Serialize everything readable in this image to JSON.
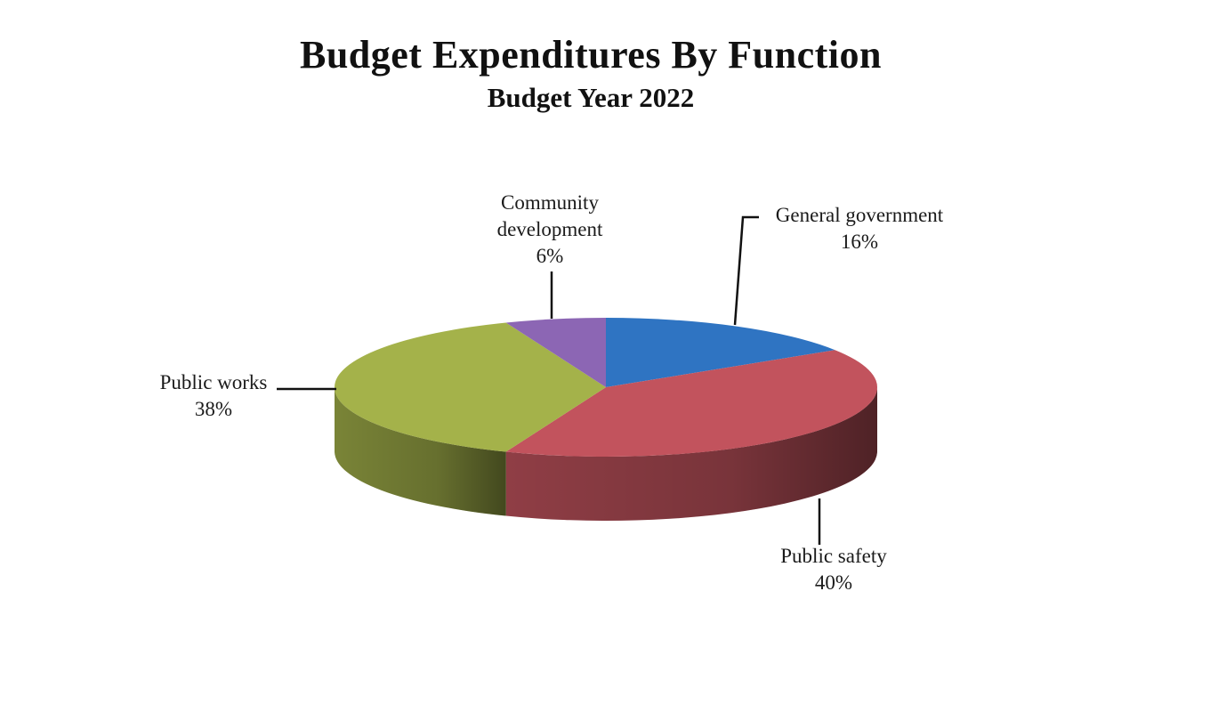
{
  "chart_data": {
    "type": "pie",
    "title": "Budget Expenditures By Function",
    "subtitle": "Budget Year 2022",
    "slices": [
      {
        "label": "General government",
        "value": 16,
        "value_label": "16%",
        "color": "#2f74c2"
      },
      {
        "label": "Public safety",
        "value": 40,
        "value_label": "40%",
        "color": "#c2535d"
      },
      {
        "label": "Public works",
        "value": 38,
        "value_label": "38%",
        "color": "#a4b24a"
      },
      {
        "label": "Community development",
        "label_lines": [
          "Community",
          "development"
        ],
        "value": 6,
        "value_label": "6%",
        "color": "#8c66b4"
      }
    ],
    "style": "3d-pie",
    "legend": "none"
  }
}
